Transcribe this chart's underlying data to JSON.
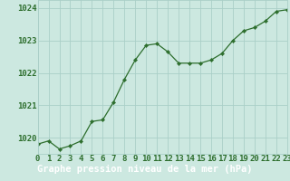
{
  "x": [
    0,
    1,
    2,
    3,
    4,
    5,
    6,
    7,
    8,
    9,
    10,
    11,
    12,
    13,
    14,
    15,
    16,
    17,
    18,
    19,
    20,
    21,
    22,
    23
  ],
  "y": [
    1019.8,
    1019.9,
    1019.65,
    1019.75,
    1019.9,
    1020.5,
    1020.55,
    1021.1,
    1021.8,
    1022.4,
    1022.85,
    1022.9,
    1022.65,
    1022.3,
    1022.3,
    1022.3,
    1022.4,
    1022.6,
    1023.0,
    1023.3,
    1023.4,
    1023.6,
    1023.9,
    1023.95
  ],
  "ylim": [
    1019.5,
    1024.25
  ],
  "xlim": [
    0,
    23
  ],
  "yticks": [
    1020,
    1021,
    1022,
    1023,
    1024
  ],
  "xticks": [
    0,
    1,
    2,
    3,
    4,
    5,
    6,
    7,
    8,
    9,
    10,
    11,
    12,
    13,
    14,
    15,
    16,
    17,
    18,
    19,
    20,
    21,
    22,
    23
  ],
  "line_color": "#2d6e2d",
  "marker_color": "#2d6e2d",
  "bg_plot": "#cce8e0",
  "bg_fig": "#cce8e0",
  "bg_label_bar": "#2d6e2d",
  "grid_color": "#aacfc8",
  "xlabel": "Graphe pression niveau de la mer (hPa)",
  "xlabel_color": "#ffffff",
  "tick_color": "#2d6e2d",
  "xlabel_fontsize": 7.5,
  "tick_fontsize": 6.5,
  "label_bar_height": 0.13
}
